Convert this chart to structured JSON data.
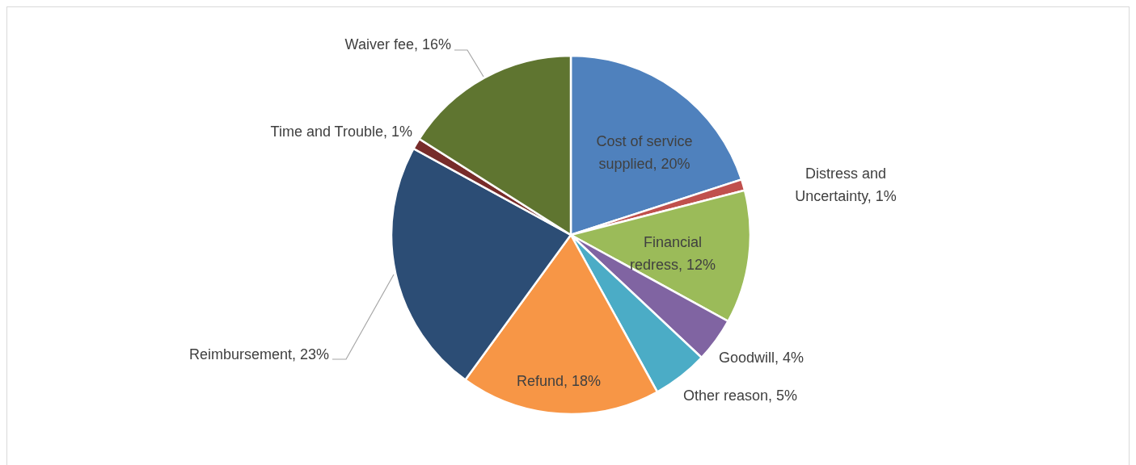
{
  "chart_data": {
    "type": "pie",
    "categories": [
      "Cost of service supplied",
      "Distress and Uncertainty",
      "Financial redress",
      "Goodwill",
      "Other reason",
      "Refund",
      "Reimbursement",
      "Time and Trouble",
      "Waiver fee"
    ],
    "values": [
      20,
      1,
      12,
      4,
      5,
      18,
      23,
      1,
      16
    ],
    "value_labels": [
      "20%",
      "1%",
      "12%",
      "4%",
      "5%",
      "18%",
      "23%",
      "1%",
      "16%"
    ],
    "colors": [
      "#4f81bd",
      "#c0504d",
      "#9bbb59",
      "#8064a2",
      "#4bacc6",
      "#f79646",
      "#2c4d75",
      "#772c2a",
      "#5f7530"
    ],
    "legend": false
  }
}
